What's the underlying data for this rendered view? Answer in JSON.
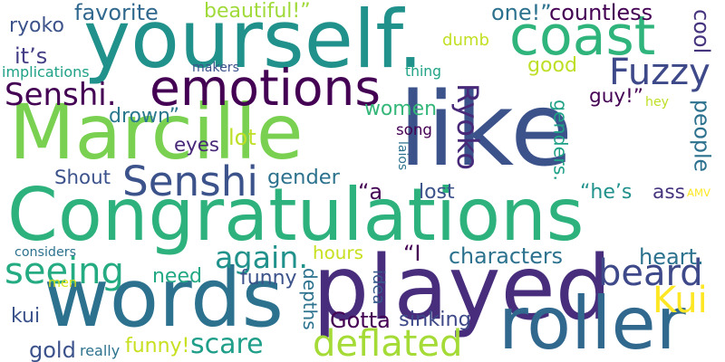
{
  "words": [
    {
      "text": "like",
      "color": "#3b528b"
    },
    {
      "text": "Congratulations",
      "color": "#2db27d"
    },
    {
      "text": "yourself.",
      "color": "#21918c"
    },
    {
      "text": "Marcille",
      "color": "#7ad151"
    },
    {
      "text": "played",
      "color": "#472d7b"
    },
    {
      "text": "words",
      "color": "#2c728e"
    },
    {
      "text": "roller",
      "color": "#31688e"
    },
    {
      "text": "coast",
      "color": "#2fb47c"
    },
    {
      "text": "emotions",
      "color": "#440154"
    },
    {
      "text": "deflated",
      "color": "#a5db36"
    },
    {
      "text": "Senshi",
      "color": "#3b528b"
    },
    {
      "text": "seeing",
      "color": "#25ab82"
    },
    {
      "text": "Ryoko",
      "color": "#482878"
    },
    {
      "text": "Senshi.",
      "color": "#440154"
    },
    {
      "text": "Fuzzy",
      "color": "#3e4989"
    },
    {
      "text": "beard",
      "color": "#3e4989"
    },
    {
      "text": "scare",
      "color": "#1f9e89"
    },
    {
      "text": "again.",
      "color": "#21918c"
    },
    {
      "text": "Kui",
      "color": "#fde725"
    },
    {
      "text": "favorite",
      "color": "#31688e"
    },
    {
      "text": "beautiful!”",
      "color": "#a0da39"
    },
    {
      "text": "one!”",
      "color": "#2c728e"
    },
    {
      "text": "countless",
      "color": "#440154"
    },
    {
      "text": "ryoko",
      "color": "#3b528b"
    },
    {
      "text": "it’s",
      "color": "#433e85"
    },
    {
      "text": "dumb",
      "color": "#c2df23"
    },
    {
      "text": "good",
      "color": "#bddf26"
    },
    {
      "text": "cool",
      "color": "#46337e"
    },
    {
      "text": "guy!”",
      "color": "#440154"
    },
    {
      "text": "women",
      "color": "#35b779"
    },
    {
      "text": "genders.",
      "color": "#1fa187"
    },
    {
      "text": "people",
      "color": "#2c728e"
    },
    {
      "text": "lot",
      "color": "#bddf26"
    },
    {
      "text": "eyes",
      "color": "#482878"
    },
    {
      "text": "drown”",
      "color": "#2a788e"
    },
    {
      "text": "Shout",
      "color": "#3b528b"
    },
    {
      "text": "gender",
      "color": "#2c728e"
    },
    {
      "text": "“a",
      "color": "#440154"
    },
    {
      "text": "lost",
      "color": "#3b528b"
    },
    {
      "text": "“he’s",
      "color": "#21918c"
    },
    {
      "text": "ass",
      "color": "#46337e"
    },
    {
      "text": "hours",
      "color": "#c8e020"
    },
    {
      "text": "“I",
      "color": "#440154"
    },
    {
      "text": "characters",
      "color": "#2c728e"
    },
    {
      "text": "heart.",
      "color": "#2c728e"
    },
    {
      "text": "need",
      "color": "#22a884"
    },
    {
      "text": "funny",
      "color": "#3b528b"
    },
    {
      "text": "men",
      "color": "#d8e219"
    },
    {
      "text": "kui",
      "color": "#3b528b"
    },
    {
      "text": "depths",
      "color": "#2c728e"
    },
    {
      "text": "idea",
      "color": "#38598c"
    },
    {
      "text": "Gotta",
      "color": "#440154"
    },
    {
      "text": "sinking",
      "color": "#3e4989"
    },
    {
      "text": "gold",
      "color": "#3b528b"
    },
    {
      "text": "funny!",
      "color": "#c8e020"
    },
    {
      "text": "song",
      "color": "#440154"
    },
    {
      "text": "really",
      "color": "#2c728e"
    },
    {
      "text": "implications",
      "color": "#1fa187"
    },
    {
      "text": "makers",
      "color": "#3b528b"
    },
    {
      "text": "thing",
      "color": "#20a386"
    },
    {
      "text": "hey",
      "color": "#bddf26"
    },
    {
      "text": "laios",
      "color": "#2c728e"
    },
    {
      "text": "AMV",
      "color": "#fde725"
    },
    {
      "text": "considers",
      "color": "#2c728e"
    }
  ]
}
